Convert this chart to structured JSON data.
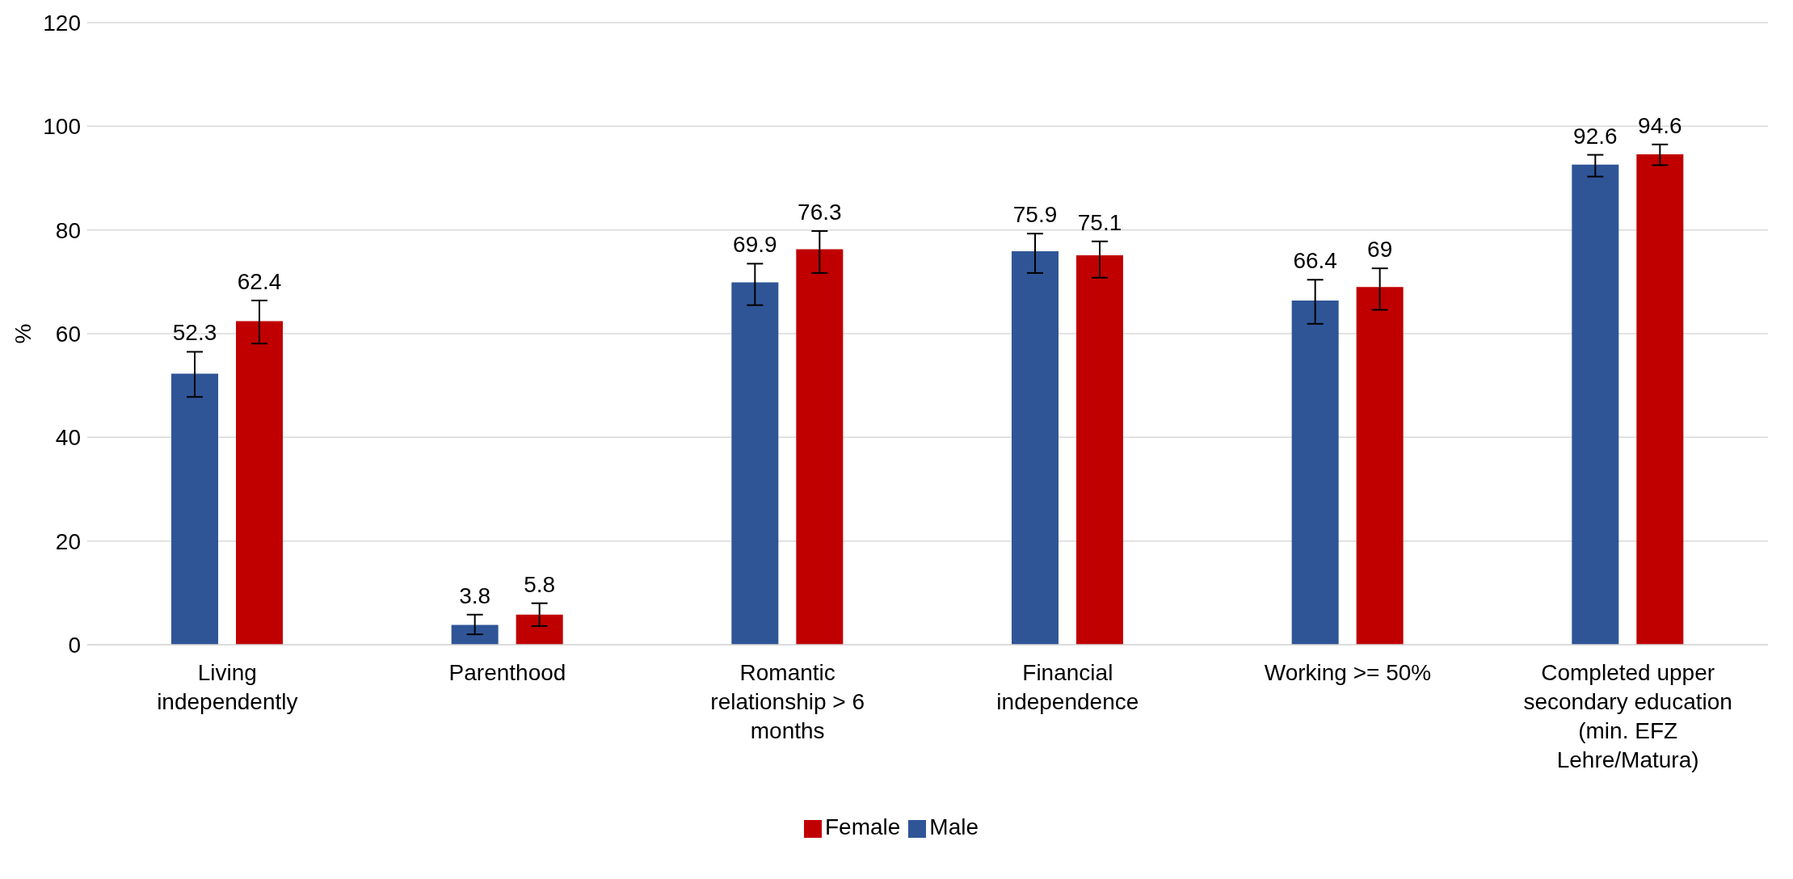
{
  "chart_data": {
    "type": "bar",
    "ylabel": "%",
    "categories": [
      "Living independently",
      "Parenthood",
      "Romantic relationship > 6 months",
      "Financial independence",
      "Working >= 50%",
      "Completed upper secondary education (min. EFZ Lehre/Matura)"
    ],
    "series": [
      {
        "name": "Male",
        "color": "#2f5597",
        "values": [
          52.3,
          3.8,
          69.9,
          75.9,
          66.4,
          92.6
        ],
        "errors": [
          [
            47.8,
            56.5
          ],
          [
            2.0,
            5.8
          ],
          [
            65.5,
            73.5
          ],
          [
            71.7,
            79.3
          ],
          [
            61.9,
            70.4
          ],
          [
            90.3,
            94.5
          ]
        ]
      },
      {
        "name": "Female",
        "color": "#c00000",
        "values": [
          62.4,
          5.8,
          76.3,
          75.1,
          69,
          94.6
        ],
        "errors": [
          [
            58.1,
            66.4
          ],
          [
            3.6,
            8.0
          ],
          [
            71.7,
            79.8
          ],
          [
            70.8,
            77.8
          ],
          [
            64.6,
            72.6
          ],
          [
            92.5,
            96.5
          ]
        ]
      }
    ],
    "ylim": [
      0,
      120
    ],
    "yticks": [
      0,
      20,
      40,
      60,
      80,
      100,
      120
    ],
    "grid": "y",
    "legend": "bottom",
    "data_labels": true
  }
}
